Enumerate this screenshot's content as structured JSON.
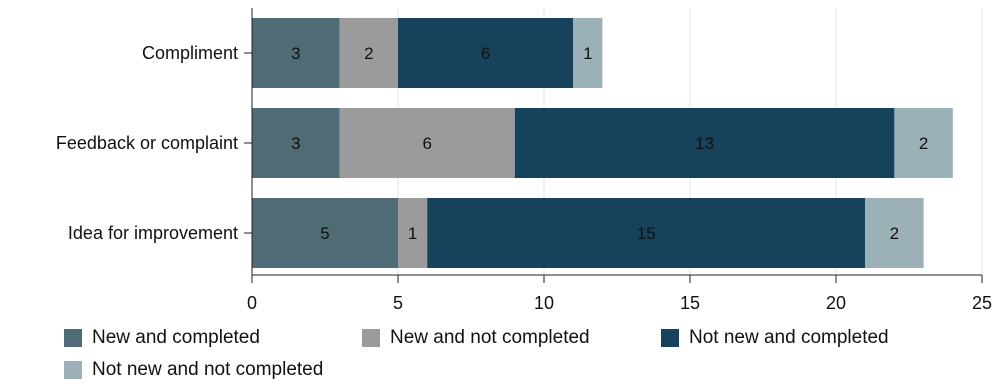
{
  "chart_data": {
    "type": "bar",
    "orientation": "horizontal",
    "stacked": true,
    "categories": [
      "Compliment",
      "Feedback or complaint",
      "Idea for improvement"
    ],
    "series": [
      {
        "name": "New and completed",
        "color": "#4f6b76",
        "values": [
          3,
          3,
          5
        ]
      },
      {
        "name": "New and not completed",
        "color": "#9b9b9b",
        "values": [
          2,
          6,
          1
        ]
      },
      {
        "name": "Not new and completed",
        "color": "#16425c",
        "values": [
          6,
          13,
          15
        ]
      },
      {
        "name": "Not new and not completed",
        "color": "#9cb0b7",
        "values": [
          1,
          2,
          2
        ]
      }
    ],
    "x_ticks": [
      0,
      5,
      10,
      15,
      20,
      25
    ],
    "xlim": [
      0,
      25
    ],
    "grid": "vertical",
    "legend_position": "bottom"
  }
}
